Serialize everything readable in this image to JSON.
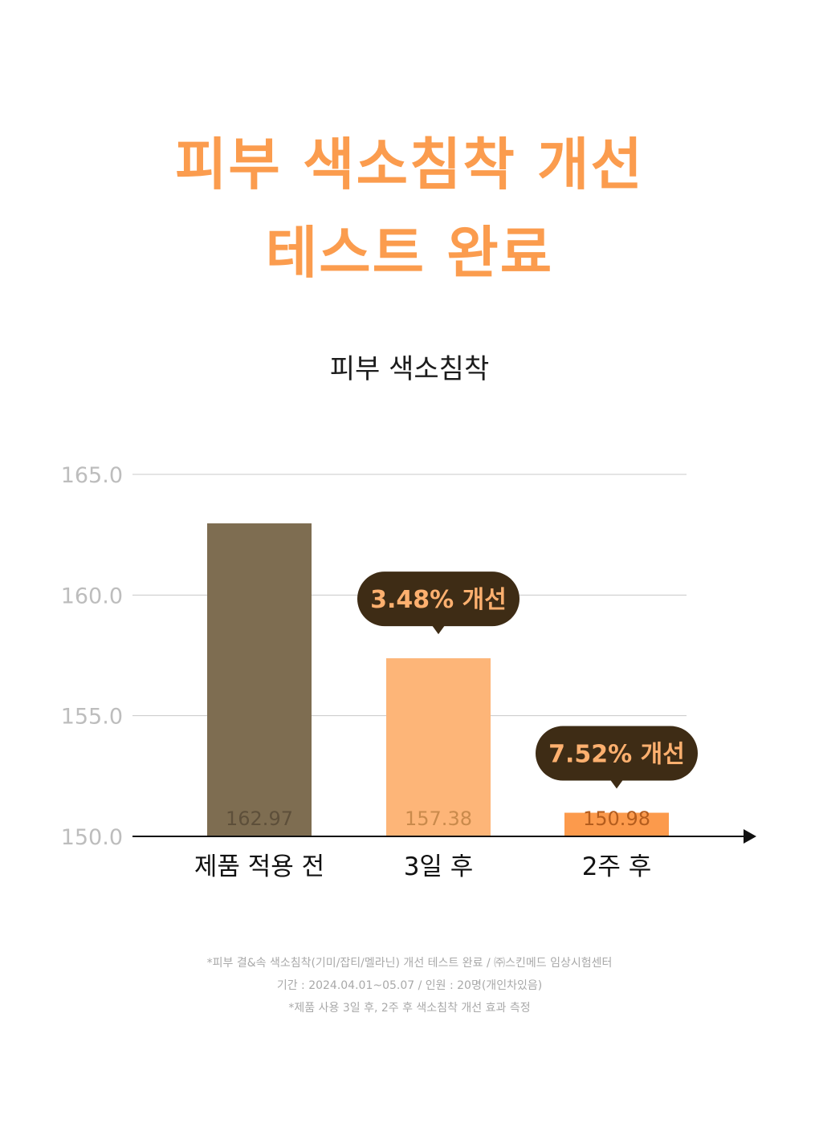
{
  "headline": {
    "line1": "피부 색소침착 개선",
    "line2": "테스트 완료"
  },
  "chart_data": {
    "type": "bar",
    "title": "피부 색소침착",
    "categories": [
      "제품 적용 전",
      "3일 후",
      "2주 후"
    ],
    "values": [
      162.97,
      157.38,
      150.98
    ],
    "value_labels": [
      "162.97",
      "157.38",
      "150.98"
    ],
    "yticks": [
      "165.0",
      "160.0",
      "155.0",
      "150.0"
    ],
    "ylim": [
      150,
      165
    ],
    "grid": true,
    "colors": [
      "#7e6d51",
      "#fdb578",
      "#fc9a4c"
    ],
    "callouts": [
      {
        "category_index": 1,
        "text": "3.48% 개선"
      },
      {
        "category_index": 2,
        "text": "7.52% 개선"
      }
    ]
  },
  "footnotes": [
    "*피부 결&속 색소침착(기미/잡티/멜라닌) 개선 테스트 완료 / ㈜스킨메드 임상시험센터",
    "기간 : 2024.04.01~05.07 / 인원 : 20명(개인차있음)",
    "*제품 사용 3일 후, 2주 후 색소침착 개선 효과 측정"
  ]
}
